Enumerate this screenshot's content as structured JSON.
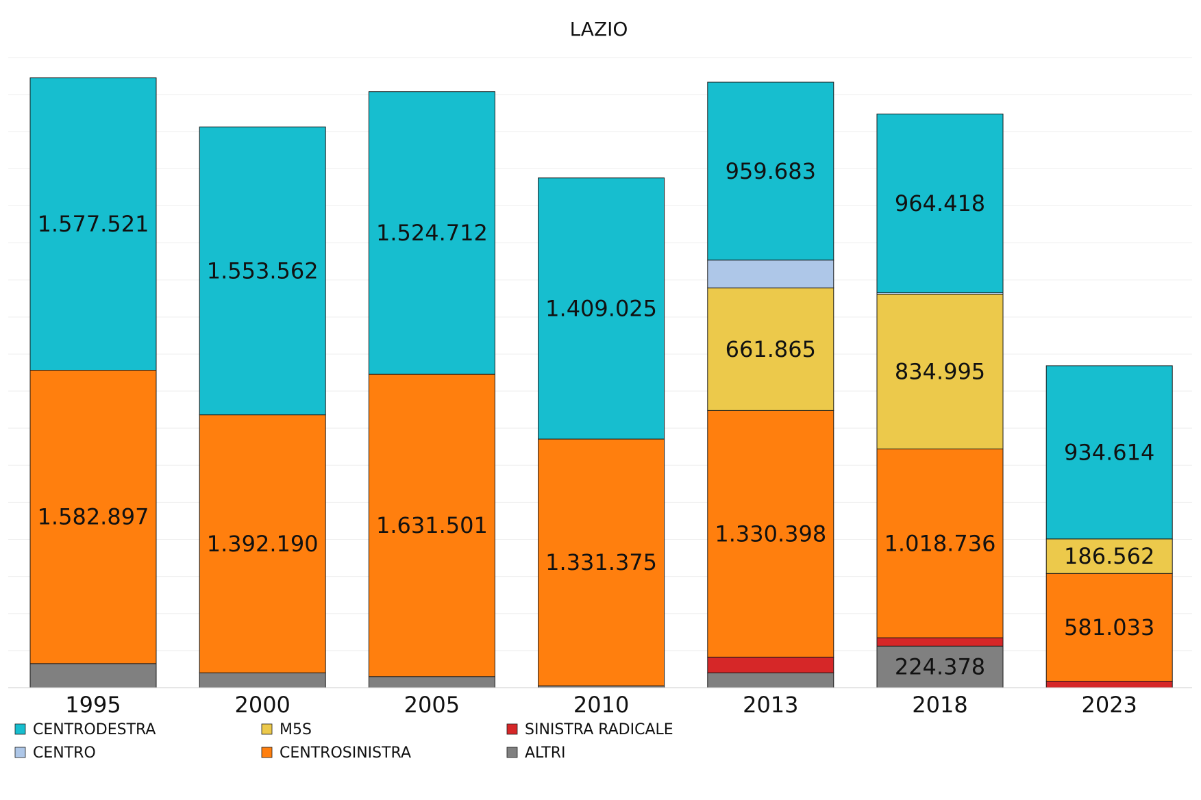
{
  "chart_data": {
    "type": "bar",
    "stacked": true,
    "title": "LAZIO",
    "xlabel": "",
    "ylabel": "",
    "ylim": [
      0,
      3400000
    ],
    "grid": true,
    "legend_position": "bottom-left",
    "categories": [
      "1995",
      "2000",
      "2005",
      "2010",
      "2013",
      "2018",
      "2023"
    ],
    "series": [
      {
        "name": "ALTRI",
        "color": "#808080",
        "values": [
          130000,
          80000,
          60000,
          10000,
          80000,
          224378,
          0
        ],
        "labels": [
          "",
          "",
          "",
          "",
          "",
          "224.378",
          ""
        ]
      },
      {
        "name": "SINISTRA RADICALE",
        "color": "#d62728",
        "values": [
          0,
          0,
          0,
          0,
          85000,
          45000,
          35000
        ],
        "labels": [
          "",
          "",
          "",
          "",
          "",
          "",
          ""
        ]
      },
      {
        "name": "CENTROSINISTRA",
        "color": "#ff7f0e",
        "values": [
          1582897,
          1392190,
          1631501,
          1331375,
          1330398,
          1018736,
          581033
        ],
        "labels": [
          "1.582.897",
          "1.392.190",
          "1.631.501",
          "1.331.375",
          "1.330.398",
          "1.018.736",
          "581.033"
        ]
      },
      {
        "name": "M5S",
        "color": "#ecc94b",
        "values": [
          0,
          0,
          0,
          0,
          661865,
          834995,
          186562
        ],
        "labels": [
          "",
          "",
          "",
          "",
          "661.865",
          "834.995",
          "186.562"
        ]
      },
      {
        "name": "CENTRO",
        "color": "#aec7e8",
        "values": [
          0,
          0,
          0,
          0,
          150000,
          8000,
          0
        ],
        "labels": [
          "",
          "",
          "",
          "",
          "",
          "",
          ""
        ]
      },
      {
        "name": "CENTRODESTRA",
        "color": "#17becf",
        "values": [
          1577521,
          1553562,
          1524712,
          1409025,
          959683,
          964418,
          934614
        ],
        "labels": [
          "1.577.521",
          "1.553.562",
          "1.524.712",
          "1.409.025",
          "959.683",
          "964.418",
          "934.614"
        ]
      }
    ],
    "legend": [
      {
        "name": "CENTRODESTRA",
        "color": "#17becf"
      },
      {
        "name": "M5S",
        "color": "#ecc94b"
      },
      {
        "name": "SINISTRA RADICALE",
        "color": "#d62728"
      },
      {
        "name": "CENTRO",
        "color": "#aec7e8"
      },
      {
        "name": "CENTROSINISTRA",
        "color": "#ff7f0e"
      },
      {
        "name": "ALTRI",
        "color": "#808080"
      }
    ]
  }
}
